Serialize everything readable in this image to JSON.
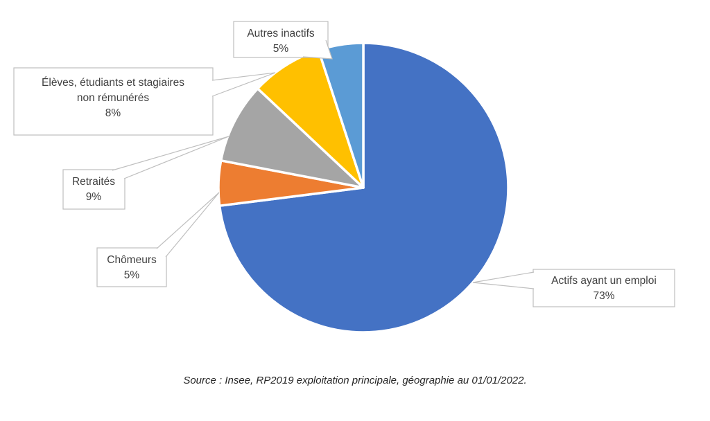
{
  "chart_data": {
    "type": "pie",
    "title": "",
    "direction": "clockwise",
    "start_angle_deg": 0,
    "legend_position": "callouts",
    "background_color": "#FFFFFF",
    "label_text_color": "#404040",
    "callout_border_color": "#BFBFBF",
    "slice_separator_color": "#FFFFFF",
    "slices": [
      {
        "label": "Actifs ayant un emploi",
        "label_lines": [
          "Actifs ayant un emploi"
        ],
        "value": 73,
        "display": "73%",
        "color": "#4472C4"
      },
      {
        "label": "Chômeurs",
        "label_lines": [
          "Chômeurs"
        ],
        "value": 5,
        "display": "5%",
        "color": "#ED7D31"
      },
      {
        "label": "Retraités",
        "label_lines": [
          "Retraités"
        ],
        "value": 9,
        "display": "9%",
        "color": "#A5A5A5"
      },
      {
        "label": "Élèves, étudiants et stagiaires non rémunérés",
        "label_lines": [
          "Élèves, étudiants et stagiaires",
          "non rémunérés"
        ],
        "value": 8,
        "display": "8%",
        "color": "#FFC000"
      },
      {
        "label": "Autres inactifs",
        "label_lines": [
          "Autres inactifs"
        ],
        "value": 5,
        "display": "5%",
        "color": "#5B9BD5"
      }
    ],
    "source": "Source : Insee, RP2019 exploitation principale, géographie au 01/01/2022."
  }
}
